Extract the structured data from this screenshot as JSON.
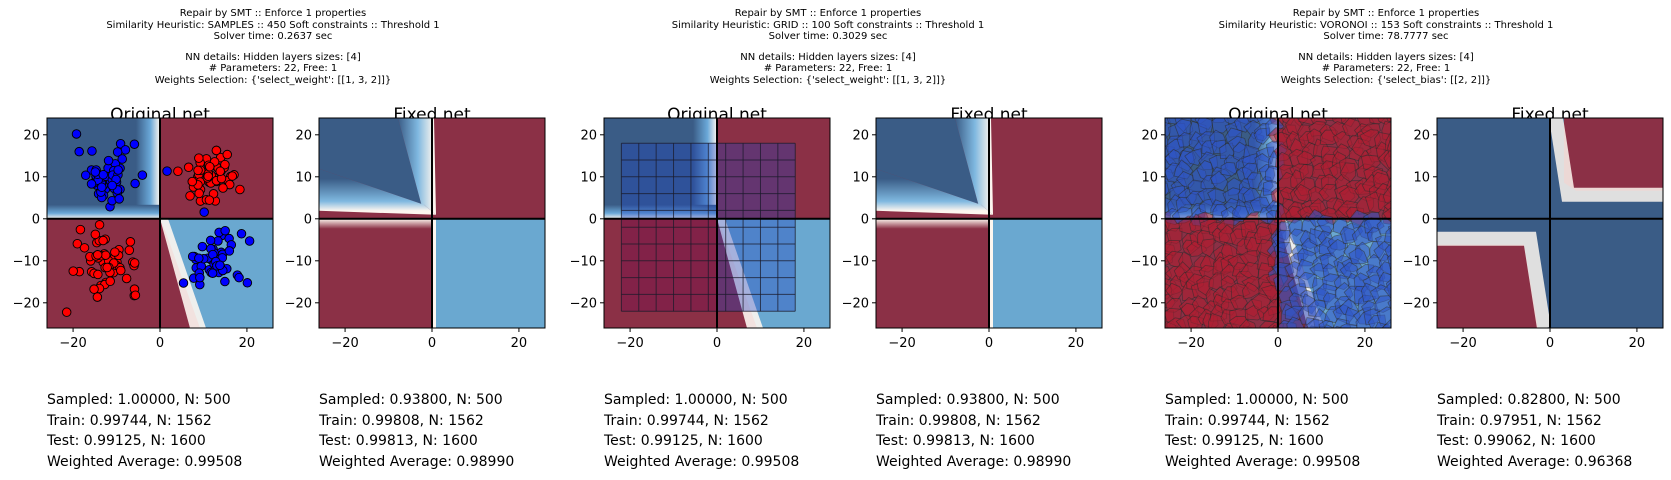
{
  "colors": {
    "red_region": "#8b3046",
    "blue_region": "#3a5c86",
    "light_blue_region": "#6aa8d0",
    "red_point": "#ff0000",
    "blue_point": "#0000ff",
    "boundary_white": "#fdf6ef"
  },
  "groups": [
    {
      "header": [
        "Repair by SMT :: Enforce 1 properties",
        "Similarity Heuristic: SAMPLES :: 450 Soft constraints :: Threshold 1",
        "Solver time: 0.2637 sec",
        "NN details: Hidden layers sizes: [4]",
        "# Parameters: 22, Free: 1",
        "Weights Selection: {'select_weight': [[1, 3, 2]]}"
      ]
    },
    {
      "header": [
        "Repair by SMT :: Enforce 1 properties",
        "Similarity Heuristic: GRID :: 100 Soft constraints :: Threshold 1",
        "Solver time: 0.3029 sec",
        "NN details: Hidden layers sizes: [4]",
        "# Parameters: 22, Free: 1",
        "Weights Selection: {'select_weight': [[1, 3, 2]]}"
      ]
    },
    {
      "header": [
        "Repair by SMT :: Enforce 1 properties",
        "Similarity Heuristic: VORONOI :: 153 Soft constraints :: Threshold 1",
        "Solver time: 78.7777 sec",
        "NN details: Hidden layers sizes: [4]",
        "# Parameters: 22, Free: 1",
        "Weights Selection: {'select_bias': [[2, 2]]}"
      ]
    }
  ],
  "panels": [
    {
      "title": "Original net",
      "stats": [
        "Sampled: 1.00000, N: 500",
        "Train: 0.99744, N: 1562",
        "Test: 0.99125, N: 1600",
        "Weighted Average: 0.99508"
      ]
    },
    {
      "title": "Fixed net",
      "stats": [
        "Sampled: 0.93800, N: 500",
        "Train: 0.99808, N: 1562",
        "Test: 0.99813, N: 1600",
        "Weighted Average: 0.98990"
      ]
    },
    {
      "title": "Original net",
      "stats": [
        "Sampled: 1.00000, N: 500",
        "Train: 0.99744, N: 1562",
        "Test: 0.99125, N: 1600",
        "Weighted Average: 0.99508"
      ]
    },
    {
      "title": "Fixed net",
      "stats": [
        "Sampled: 0.93800, N: 500",
        "Train: 0.99808, N: 1562",
        "Test: 0.99813, N: 1600",
        "Weighted Average: 0.98990"
      ]
    },
    {
      "title": "Original net",
      "stats": [
        "Sampled: 1.00000, N: 500",
        "Train: 0.99744, N: 1562",
        "Test: 0.99125, N: 1600",
        "Weighted Average: 0.99508"
      ]
    },
    {
      "title": "Fixed net",
      "stats": [
        "Sampled: 0.82800, N: 500",
        "Train: 0.97951, N: 1562",
        "Test: 0.99062, N: 1600",
        "Weighted Average: 0.96368"
      ]
    }
  ],
  "chart_data": [
    {
      "type": "heatmap",
      "title": "Original net",
      "variant": "xor",
      "overlay": "samples",
      "xlim": [
        -26,
        26
      ],
      "ylim": [
        -26,
        24
      ],
      "xticks": [
        -20,
        0,
        20
      ],
      "yticks": [
        -20,
        -10,
        0,
        10,
        20
      ],
      "blue_clusters": [
        [
          -12,
          10
        ],
        [
          12,
          -10
        ]
      ],
      "red_clusters": [
        [
          12,
          10
        ],
        [
          -12,
          -10
        ]
      ],
      "cluster_spread": 3.5
    },
    {
      "type": "heatmap",
      "title": "Fixed net",
      "variant": "fixed-a",
      "overlay": "none",
      "xlim": [
        -26,
        26
      ],
      "ylim": [
        -26,
        24
      ],
      "xticks": [
        -20,
        0,
        20
      ],
      "yticks": [
        -20,
        -10,
        0,
        10,
        20
      ]
    },
    {
      "type": "heatmap",
      "title": "Original net",
      "variant": "xor",
      "overlay": "grid",
      "grid_xlim": [
        -22,
        18
      ],
      "grid_ylim": [
        -22,
        18
      ],
      "grid_n": 10,
      "xlim": [
        -26,
        26
      ],
      "ylim": [
        -26,
        24
      ],
      "xticks": [
        -20,
        0,
        20
      ],
      "yticks": [
        -20,
        -10,
        0,
        10,
        20
      ]
    },
    {
      "type": "heatmap",
      "title": "Fixed net",
      "variant": "fixed-a",
      "overlay": "none",
      "xlim": [
        -26,
        26
      ],
      "ylim": [
        -26,
        24
      ],
      "xticks": [
        -20,
        0,
        20
      ],
      "yticks": [
        -20,
        -10,
        0,
        10,
        20
      ]
    },
    {
      "type": "heatmap",
      "title": "Original net",
      "variant": "xor",
      "overlay": "voronoi",
      "xlim": [
        -26,
        26
      ],
      "ylim": [
        -26,
        24
      ],
      "xticks": [
        -20,
        0,
        20
      ],
      "yticks": [
        -20,
        -10,
        0,
        10,
        20
      ]
    },
    {
      "type": "heatmap",
      "title": "Fixed net",
      "variant": "fixed-b",
      "overlay": "none",
      "xlim": [
        -26,
        26
      ],
      "ylim": [
        -26,
        24
      ],
      "xticks": [
        -20,
        0,
        20
      ],
      "yticks": [
        -20,
        -10,
        0,
        10,
        20
      ]
    }
  ]
}
